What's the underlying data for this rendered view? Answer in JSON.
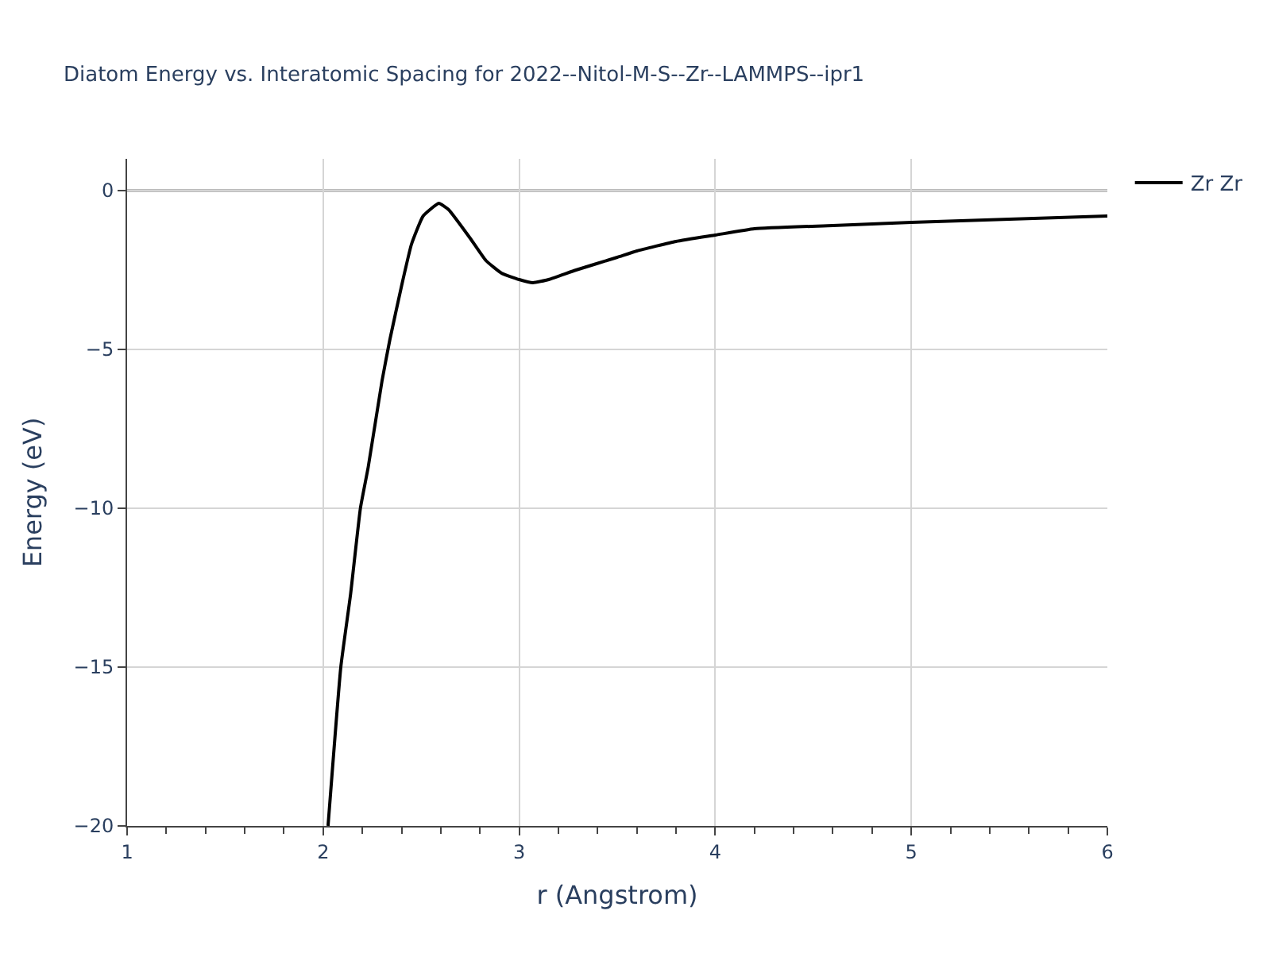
{
  "chart_data": {
    "type": "line",
    "title": "Diatom Energy vs. Interatomic Spacing for 2022--Nitol-M-S--Zr--LAMMPS--ipr1",
    "xlabel": "r (Angstrom)",
    "ylabel": "Energy (eV)",
    "x": [
      2.025,
      2.09,
      2.14,
      2.19,
      2.23,
      2.3,
      2.34,
      2.4,
      2.45,
      2.51,
      2.59,
      2.64,
      2.75,
      2.83,
      2.91,
      3.0,
      3.07,
      3.15,
      3.29,
      3.5,
      3.6,
      3.8,
      4.0,
      4.2,
      4.6,
      5.0,
      5.5,
      6.0
    ],
    "series": [
      {
        "name": "Zr Zr",
        "color": "#000000",
        "values": [
          -20,
          -15,
          -12.7,
          -10,
          -8.7,
          -6,
          -4.7,
          -3,
          -1.7,
          -0.8,
          -0.4,
          -0.6,
          -1.5,
          -2.2,
          -2.6,
          -2.8,
          -2.9,
          -2.8,
          -2.5,
          -2.1,
          -1.9,
          -1.6,
          -1.4,
          -1.2,
          -1.1,
          -1.0,
          -0.9,
          -0.8
        ]
      }
    ],
    "xlim": [
      1,
      6
    ],
    "ylim": [
      -20,
      1
    ],
    "xticks": [
      1,
      2,
      3,
      4,
      5,
      6
    ],
    "yticks": [
      0,
      -5,
      -10,
      -15,
      -20
    ],
    "ref_lines": [
      {
        "axis": "y",
        "value": 0,
        "color": "#bbbbbb"
      }
    ],
    "grid": true,
    "legend": "top right",
    "line_style": "solid",
    "marker": "none"
  }
}
